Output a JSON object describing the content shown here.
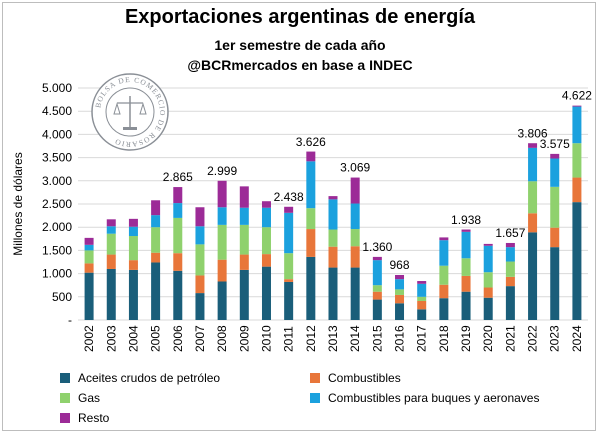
{
  "title": "Exportaciones argentinas de energía",
  "subtitle1": "1er semestre de cada año",
  "subtitle2": "@BCRmercados en base a INDEC",
  "seal_text": "BOLSA DE COMERCIO DE ROSARIO",
  "chart_data": {
    "type": "bar",
    "stacked": true,
    "ylabel": "Millones de dólares",
    "ylim": [
      0,
      5000
    ],
    "yticks": [
      "-",
      "500",
      "1.000",
      "1.500",
      "2.000",
      "2.500",
      "3.000",
      "3.500",
      "4.000",
      "4.500",
      "5.000"
    ],
    "grid": true,
    "legend_position": "bottom",
    "categories": [
      "2002",
      "2003",
      "2004",
      "2005",
      "2006",
      "2007",
      "2008",
      "2009",
      "2010",
      "2011",
      "2012",
      "2013",
      "2014",
      "2015",
      "2016",
      "2017",
      "2018",
      "2019",
      "2020",
      "2021",
      "2022",
      "2023",
      "2024"
    ],
    "series": [
      {
        "name": "Aceites crudos de petróleo",
        "color": "#1a5e7a",
        "values": [
          1020,
          1100,
          1080,
          1240,
          1060,
          580,
          830,
          1080,
          1150,
          820,
          1360,
          1130,
          1130,
          440,
          360,
          230,
          470,
          610,
          480,
          730,
          1890,
          1570,
          2540
        ]
      },
      {
        "name": "Combustibles",
        "color": "#e8763a",
        "values": [
          200,
          310,
          210,
          210,
          380,
          380,
          470,
          330,
          270,
          60,
          600,
          450,
          460,
          170,
          180,
          180,
          290,
          340,
          220,
          200,
          410,
          420,
          530
        ]
      },
      {
        "name": "Gas",
        "color": "#8fd16d",
        "values": [
          280,
          450,
          520,
          550,
          760,
          670,
          750,
          640,
          580,
          560,
          450,
          370,
          370,
          140,
          120,
          90,
          410,
          380,
          330,
          330,
          690,
          880,
          740
        ]
      },
      {
        "name": "Combustibles para buques y aeronaves",
        "color": "#1ba1de",
        "values": [
          120,
          160,
          200,
          260,
          320,
          390,
          380,
          370,
          420,
          870,
          1010,
          650,
          550,
          540,
          220,
          280,
          550,
          570,
          570,
          310,
          720,
          610,
          790
        ]
      },
      {
        "name": "Resto",
        "color": "#9c2b97",
        "values": [
          150,
          150,
          170,
          320,
          345,
          410,
          570,
          460,
          140,
          130,
          210,
          70,
          560,
          70,
          90,
          60,
          60,
          50,
          40,
          90,
          100,
          100,
          20
        ]
      }
    ],
    "totals": [
      1770,
      2170,
      2180,
      2580,
      2865,
      2430,
      2999,
      2880,
      2560,
      2438,
      3626,
      2670,
      3069,
      1360,
      968,
      840,
      1780,
      1938,
      1640,
      1657,
      3806,
      3575,
      4622
    ],
    "data_labels": {
      "2006": "2.865",
      "2008": "2.999",
      "2011": "2.438",
      "2012": "3.626",
      "2014": "3.069",
      "2015": "1.360",
      "2016": "968",
      "2019": "1.938",
      "2021": "1.657",
      "2022": "3.806",
      "2023": "3.575",
      "2024": "4.622"
    }
  }
}
